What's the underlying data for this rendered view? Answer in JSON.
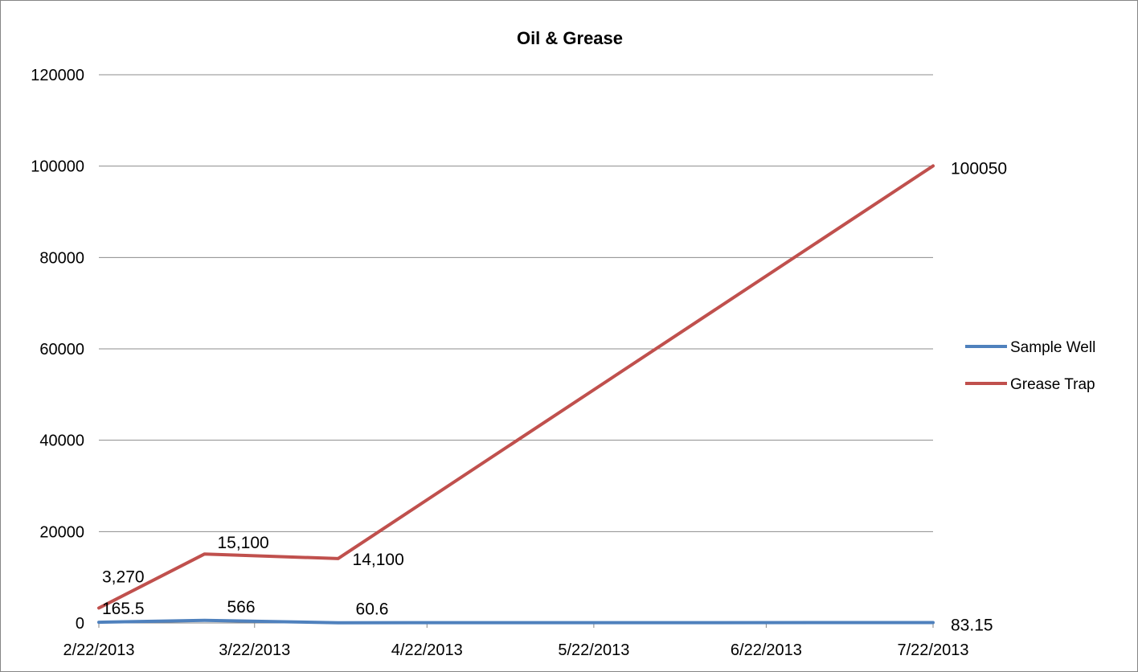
{
  "chart_data": {
    "type": "line",
    "title": "Oil & Grease",
    "xlabel": "",
    "ylabel": "",
    "x_ticks": [
      "2/22/2013",
      "3/22/2013",
      "4/22/2013",
      "5/22/2013",
      "6/22/2013",
      "7/22/2013"
    ],
    "x_range": [
      "2/22/2013",
      "7/22/2013"
    ],
    "y_ticks": [
      "0",
      "20000",
      "40000",
      "60000",
      "80000",
      "100000",
      "120000"
    ],
    "ylim": [
      0,
      120000
    ],
    "grid": "horizontal",
    "legend_position": "right",
    "series": [
      {
        "name": "Sample Well",
        "color": "#4f81bd",
        "points": [
          {
            "x": "2/22/2013",
            "y": 165.5,
            "label": "165.5"
          },
          {
            "x": "3/13/2013",
            "y": 566,
            "label": "566"
          },
          {
            "x": "4/6/2013",
            "y": 60.6,
            "label": "60.6"
          },
          {
            "x": "7/22/2013",
            "y": 83.15,
            "label": "83.15"
          }
        ]
      },
      {
        "name": "Grease Trap",
        "color": "#c0504d",
        "points": [
          {
            "x": "2/22/2013",
            "y": 3270,
            "label": "3,270"
          },
          {
            "x": "3/13/2013",
            "y": 15100,
            "label": "15,100"
          },
          {
            "x": "4/6/2013",
            "y": 14100,
            "label": "14,100"
          },
          {
            "x": "7/22/2013",
            "y": 100050,
            "label": "100050"
          }
        ]
      }
    ]
  }
}
